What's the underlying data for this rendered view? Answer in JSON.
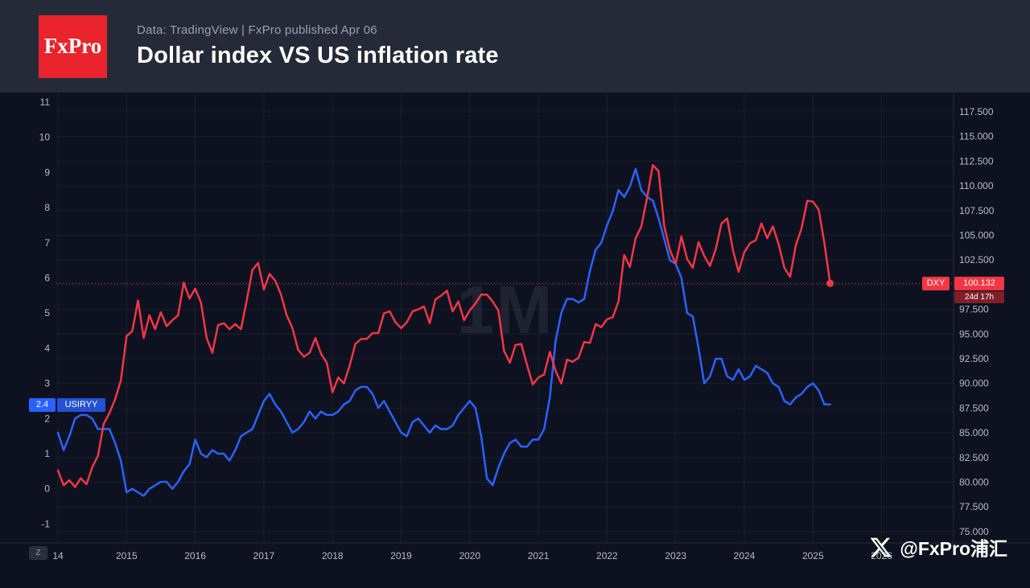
{
  "header": {
    "logo_text": "FxPro",
    "source_line": "Data: TradingView | FxPro published Apr 06",
    "title": "Dollar index VS US inflation rate"
  },
  "badges": {
    "usiryy_value": "2.4",
    "usiryy_label": "USIRYY",
    "dxy_label": "DXY",
    "dxy_price": "100.132",
    "dxy_countdown": "24d 17h"
  },
  "footer": {
    "timezone_button": "Z",
    "social_handle": "@FxPro浦汇"
  },
  "colors": {
    "blue": "#2962ff",
    "red": "#f23645",
    "brand_red": "#e9242c",
    "header_bg": "#252a38",
    "chart_bg": "#0e1220"
  },
  "chart_data": {
    "type": "line",
    "title": "Dollar index VS US inflation rate",
    "timeframe": "1M",
    "watermark": "1M",
    "x_start": "2014-01",
    "x_interval": "monthly",
    "x_tick_labels": [
      "14",
      "2015",
      "2016",
      "2017",
      "2018",
      "2019",
      "2020",
      "2021",
      "2022",
      "2023",
      "2024",
      "2025",
      "2026"
    ],
    "left_axis": {
      "series": "USIRYY",
      "min": -1,
      "max": 11,
      "ticks": [
        11,
        10,
        9,
        8,
        7,
        6,
        5,
        4,
        3,
        2,
        1,
        0,
        -1
      ]
    },
    "right_axis": {
      "series": "DXY",
      "min": 75,
      "max": 117.5,
      "ticks": [
        "117.500",
        "115.000",
        "112.500",
        "110.000",
        "107.500",
        "105.000",
        "102.500",
        "100.000",
        "97.500",
        "95.000",
        "92.500",
        "90.000",
        "87.500",
        "85.000",
        "82.500",
        "80.000",
        "77.500",
        "75.000"
      ]
    },
    "series": [
      {
        "name": "USIRYY",
        "color": "#2962ff",
        "axis": "left",
        "last_value": 2.4,
        "values": [
          1.6,
          1.1,
          1.5,
          2.0,
          2.1,
          2.1,
          2.0,
          1.7,
          1.7,
          1.7,
          1.3,
          0.8,
          -0.1,
          0.0,
          -0.1,
          -0.2,
          0.0,
          0.1,
          0.2,
          0.2,
          0.0,
          0.2,
          0.5,
          0.7,
          1.4,
          1.0,
          0.9,
          1.1,
          1.0,
          1.0,
          0.8,
          1.1,
          1.5,
          1.6,
          1.7,
          2.1,
          2.5,
          2.7,
          2.4,
          2.2,
          1.9,
          1.6,
          1.7,
          1.9,
          2.2,
          2.0,
          2.2,
          2.1,
          2.1,
          2.2,
          2.4,
          2.5,
          2.8,
          2.9,
          2.9,
          2.7,
          2.3,
          2.5,
          2.2,
          1.9,
          1.6,
          1.5,
          1.9,
          2.0,
          1.8,
          1.6,
          1.8,
          1.7,
          1.7,
          1.8,
          2.1,
          2.3,
          2.5,
          2.3,
          1.5,
          0.3,
          0.1,
          0.6,
          1.0,
          1.3,
          1.4,
          1.2,
          1.2,
          1.4,
          1.4,
          1.7,
          2.6,
          4.2,
          5.0,
          5.4,
          5.4,
          5.3,
          5.4,
          6.2,
          6.8,
          7.0,
          7.5,
          7.9,
          8.5,
          8.3,
          8.6,
          9.1,
          8.5,
          8.3,
          8.2,
          7.7,
          7.1,
          6.5,
          6.4,
          6.0,
          5.0,
          4.9,
          4.0,
          3.0,
          3.2,
          3.7,
          3.7,
          3.2,
          3.1,
          3.4,
          3.1,
          3.2,
          3.5,
          3.4,
          3.3,
          3.0,
          2.9,
          2.5,
          2.4,
          2.6,
          2.7,
          2.9,
          3.0,
          2.8,
          2.4,
          2.4
        ]
      },
      {
        "name": "DXY",
        "color": "#f23645",
        "axis": "right",
        "last_value": 100.132,
        "countdown": "24d 17h",
        "values": [
          81.2,
          79.7,
          80.2,
          79.5,
          80.4,
          79.8,
          81.5,
          82.7,
          85.9,
          87.0,
          88.4,
          90.3,
          94.8,
          95.3,
          98.4,
          94.6,
          96.9,
          95.5,
          97.2,
          95.8,
          96.4,
          96.9,
          100.2,
          98.6,
          99.6,
          98.2,
          94.6,
          93.1,
          95.9,
          96.1,
          95.5,
          96.0,
          95.5,
          98.4,
          101.5,
          102.2,
          99.5,
          101.1,
          100.4,
          99.0,
          96.9,
          95.6,
          93.4,
          92.7,
          93.1,
          94.6,
          93.0,
          92.1,
          89.1,
          90.6,
          90.0,
          91.8,
          94.0,
          94.5,
          94.5,
          95.1,
          95.1,
          97.1,
          97.3,
          96.2,
          95.6,
          96.2,
          97.3,
          97.5,
          97.8,
          96.1,
          98.5,
          98.9,
          99.4,
          97.3,
          98.3,
          96.4,
          97.4,
          98.1,
          99.0,
          99.0,
          98.3,
          97.4,
          93.3,
          92.1,
          93.9,
          94.0,
          91.9,
          89.9,
          90.6,
          90.9,
          93.2,
          91.3,
          90.0,
          92.4,
          92.2,
          92.6,
          94.2,
          94.1,
          96.0,
          95.7,
          96.5,
          96.7,
          98.3,
          103.0,
          101.8,
          104.7,
          105.9,
          108.8,
          112.1,
          111.5,
          105.9,
          103.5,
          102.1,
          104.9,
          102.6,
          101.7,
          104.3,
          102.9,
          101.9,
          103.6,
          106.2,
          106.7,
          103.5,
          101.3,
          103.3,
          104.2,
          104.5,
          106.2,
          104.7,
          105.9,
          104.1,
          101.7,
          100.8,
          104.0,
          105.7,
          108.5,
          108.4,
          107.6,
          104.2,
          100.132
        ]
      }
    ]
  }
}
